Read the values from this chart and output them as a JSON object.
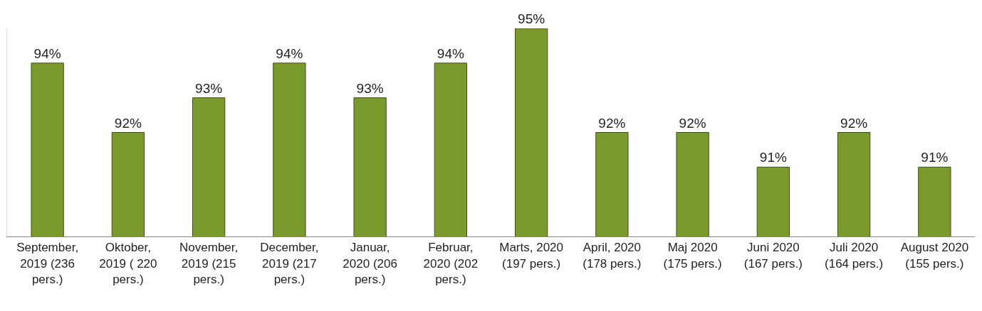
{
  "chart_data": {
    "type": "bar",
    "categories": [
      "September, 2019 (236 pers.)",
      "Oktober, 2019 ( 220 pers.)",
      "November, 2019 (215 pers.)",
      "December, 2019 (217 pers.)",
      "Januar, 2020 (206 pers.)",
      "Februar, 2020 (202 pers.)",
      "Marts, 2020 (197 pers.)",
      "April, 2020 (178 pers.)",
      "Maj 2020 (175 pers.)",
      "Juni 2020 (167 pers.)",
      "Juli 2020 (164 pers.)",
      "August 2020 (155 pers.)"
    ],
    "values": [
      94,
      92,
      93,
      94,
      93,
      94,
      95,
      92,
      92,
      91,
      92,
      91
    ],
    "value_labels": [
      "94%",
      "92%",
      "93%",
      "94%",
      "93%",
      "94%",
      "95%",
      "92%",
      "92%",
      "91%",
      "92%",
      "91%"
    ],
    "color": "#7a9a2e",
    "ylim": [
      89,
      95
    ],
    "legend": false
  }
}
